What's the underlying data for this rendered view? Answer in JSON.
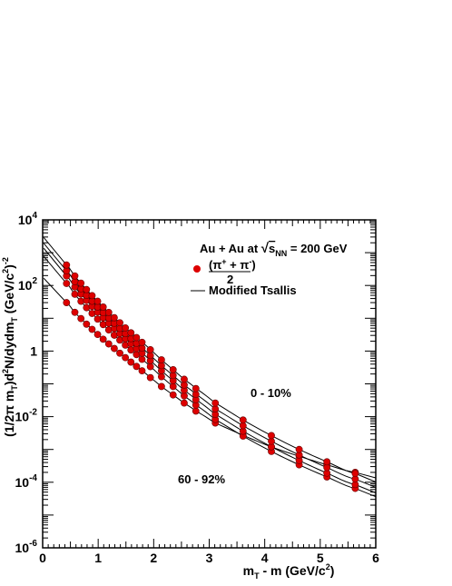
{
  "chart_data": {
    "type": "scatter",
    "xlabel": "m_T - m (GeV/c^2)",
    "ylabel": "(1/2π m_T)d^2N/dydm_T (GeV/c^2)^-2",
    "xlim": [
      0,
      6
    ],
    "ylim": [
      1e-06,
      10000.0
    ],
    "yscale": "log",
    "x_ticks": [
      "0",
      "1",
      "2",
      "3",
      "4",
      "5",
      "6"
    ],
    "y_ticks": [
      {
        "base": "10",
        "exp": "4",
        "v": 10000
      },
      {
        "base": "10",
        "exp": "2",
        "v": 100
      },
      {
        "base": "1",
        "exp": "",
        "v": 1
      },
      {
        "base": "10",
        "exp": "-2",
        "v": 0.01
      },
      {
        "base": "10",
        "exp": "-4",
        "v": 0.0001
      },
      {
        "base": "10",
        "exp": "-6",
        "v": 1e-06
      }
    ],
    "x": [
      0.43,
      0.58,
      0.69,
      0.79,
      0.89,
      0.99,
      1.09,
      1.19,
      1.29,
      1.39,
      1.49,
      1.59,
      1.69,
      1.79,
      1.94,
      2.14,
      2.35,
      2.55,
      2.76,
      3.11,
      3.61,
      4.12,
      4.62,
      5.12,
      5.63
    ],
    "series": [
      {
        "values": [
          30,
          15.2,
          9.8,
          6.6,
          4.6,
          3.2,
          2.3,
          1.65,
          1.2,
          0.86,
          0.63,
          0.46,
          0.34,
          0.25,
          0.155,
          0.083,
          0.046,
          0.026,
          0.0148,
          0.0064,
          0.0027,
          0.0012,
          0.00062,
          0.00034,
          0.0002
        ]
      },
      {
        "values": [
          115,
          54,
          33,
          21,
          14,
          9.4,
          6.4,
          4.4,
          3.05,
          2.15,
          1.52,
          1.08,
          0.78,
          0.56,
          0.335,
          0.165,
          0.083,
          0.043,
          0.0225,
          0.0082,
          0.00255,
          0.00087,
          0.00034,
          0.000145,
          6.5e-05
        ]
      },
      {
        "values": [
          195,
          90,
          55,
          35,
          23,
          15.4,
          10.4,
          7.1,
          4.9,
          3.4,
          2.38,
          1.68,
          1.2,
          0.86,
          0.51,
          0.25,
          0.125,
          0.064,
          0.033,
          0.0118,
          0.0036,
          0.00121,
          0.00046,
          0.00019,
          8.5e-05
        ]
      },
      {
        "values": [
          280,
          130,
          79,
          50,
          33,
          22,
          14.8,
          10.1,
          7.0,
          4.9,
          3.4,
          2.4,
          1.72,
          1.23,
          0.73,
          0.36,
          0.18,
          0.092,
          0.048,
          0.0172,
          0.0053,
          0.00178,
          0.00068,
          0.00028,
          0.000125
        ]
      },
      {
        "values": [
          420,
          195,
          118,
          75,
          49,
          33,
          22,
          15.1,
          10.4,
          7.3,
          5.1,
          3.6,
          2.58,
          1.85,
          1.1,
          0.54,
          0.27,
          0.138,
          0.072,
          0.026,
          0.0079,
          0.00265,
          0.001,
          0.00042,
          0.000185
        ]
      }
    ],
    "legend": [
      {
        "label": "Au + Au at √s_NN = 200 GeV"
      },
      {
        "label": "(π+ + π-)/2",
        "marker": "circle",
        "color": "#dd0000"
      },
      {
        "label": "Modified Tsallis",
        "marker": "line",
        "color": "#000000"
      }
    ],
    "annotations": [
      "0 - 10%",
      "60 - 92%"
    ],
    "colors": {
      "marker": "#dd0000",
      "marker_edge": "#660000",
      "line": "#000000"
    }
  },
  "text": {
    "legend_title_main": "Au + Au at ",
    "legend_title_s": "s",
    "legend_title_nn": "NN",
    "legend_title_rest": " = 200 GeV",
    "legend_frac_num": "(π",
    "legend_frac_plus": "+",
    "legend_frac_mid": " + π",
    "legend_frac_minus": "-",
    "legend_frac_close": ")",
    "legend_frac_den": "2",
    "legend_model": "Modified Tsallis",
    "annot_top": "0 - 10%",
    "annot_bottom": "60 - 92%",
    "xlabel_m": "m",
    "xlabel_t": "T",
    "xlabel_rest": " - m (GeV/c",
    "xlabel_sup": "2",
    "xlabel_close": ")",
    "ylabel_a": "(1/2π m",
    "ylabel_t1": "T",
    "ylabel_b": ")d",
    "ylabel_sup2": "2",
    "ylabel_c": "N/dydm",
    "ylabel_t2": "T",
    "ylabel_d": " (GeV/c",
    "ylabel_sup3": "2",
    "ylabel_e": ")",
    "ylabel_sup4": "-2"
  }
}
